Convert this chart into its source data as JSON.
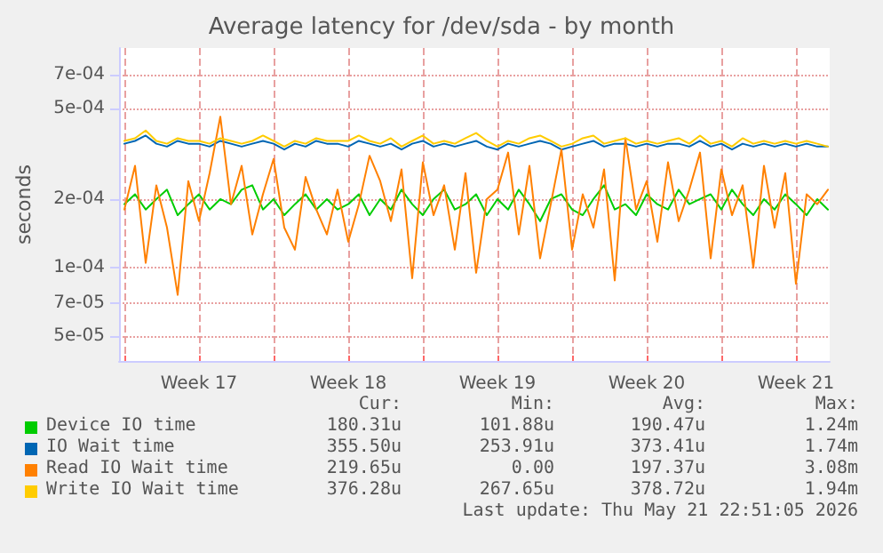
{
  "chart_data": {
    "type": "line",
    "title": "Average latency for /dev/sda - by month",
    "ylabel": "seconds",
    "log": "y",
    "grid": true,
    "legend": "bottom",
    "marker": "none",
    "line_style": "solid",
    "ylim": [
      3.9e-05,
      0.00092
    ],
    "yticks": [
      {
        "value": 5e-05,
        "label": "5e-05"
      },
      {
        "value": 7e-05,
        "label": "7e-05"
      },
      {
        "value": 0.0001,
        "label": "1e-04"
      },
      {
        "value": 0.0002,
        "label": "2e-04"
      },
      {
        "value": 0.0005,
        "label": "5e-04"
      },
      {
        "value": 0.0007,
        "label": "7e-04"
      }
    ],
    "xlim": [
      "2026-04-18T18:00",
      "2026-05-22T02:00"
    ],
    "xticks": [
      {
        "value": "2026-04-19",
        "label": null
      },
      {
        "value": "2026-04-22T12:00",
        "label": "Week 17"
      },
      {
        "value": "2026-04-26",
        "label": null
      },
      {
        "value": "2026-04-29T12:00",
        "label": "Week 18"
      },
      {
        "value": "2026-05-03",
        "label": null
      },
      {
        "value": "2026-05-06T12:00",
        "label": "Week 19"
      },
      {
        "value": "2026-05-10",
        "label": null
      },
      {
        "value": "2026-05-13T12:00",
        "label": "Week 20"
      },
      {
        "value": "2026-05-17",
        "label": null
      },
      {
        "value": "2026-05-20T12:00",
        "label": "Week 21"
      }
    ],
    "x": [
      "2026-04-19T00:00",
      "2026-04-19T12:00",
      "2026-04-20T00:00",
      "2026-04-20T12:00",
      "2026-04-21T00:00",
      "2026-04-21T12:00",
      "2026-04-22T00:00",
      "2026-04-22T12:00",
      "2026-04-23T00:00",
      "2026-04-23T12:00",
      "2026-04-24T00:00",
      "2026-04-24T12:00",
      "2026-04-25T00:00",
      "2026-04-25T12:00",
      "2026-04-26T00:00",
      "2026-04-26T12:00",
      "2026-04-27T00:00",
      "2026-04-27T12:00",
      "2026-04-28T00:00",
      "2026-04-28T12:00",
      "2026-04-29T00:00",
      "2026-04-29T12:00",
      "2026-04-30T00:00",
      "2026-04-30T12:00",
      "2026-05-01T00:00",
      "2026-05-01T12:00",
      "2026-05-02T00:00",
      "2026-05-02T12:00",
      "2026-05-03T00:00",
      "2026-05-03T12:00",
      "2026-05-04T00:00",
      "2026-05-04T12:00",
      "2026-05-05T00:00",
      "2026-05-05T12:00",
      "2026-05-06T00:00",
      "2026-05-06T12:00",
      "2026-05-07T00:00",
      "2026-05-07T12:00",
      "2026-05-08T00:00",
      "2026-05-08T12:00",
      "2026-05-09T00:00",
      "2026-05-09T12:00",
      "2026-05-10T00:00",
      "2026-05-10T12:00",
      "2026-05-11T00:00",
      "2026-05-11T12:00",
      "2026-05-12T00:00",
      "2026-05-12T12:00",
      "2026-05-13T00:00",
      "2026-05-13T12:00",
      "2026-05-14T00:00",
      "2026-05-14T12:00",
      "2026-05-15T00:00",
      "2026-05-15T12:00",
      "2026-05-16T00:00",
      "2026-05-16T12:00",
      "2026-05-17T00:00",
      "2026-05-17T12:00",
      "2026-05-18T00:00",
      "2026-05-18T12:00",
      "2026-05-19T00:00",
      "2026-05-19T12:00",
      "2026-05-20T00:00",
      "2026-05-20T12:00",
      "2026-05-21T00:00",
      "2026-05-21T12:00",
      "2026-05-22T00:00"
    ],
    "series": [
      {
        "name": "Device IO time",
        "color": "#00cc00",
        "values": [
          0.00019,
          0.00021,
          0.00018,
          0.0002,
          0.00022,
          0.00017,
          0.00019,
          0.00021,
          0.00018,
          0.0002,
          0.00019,
          0.00022,
          0.00023,
          0.00018,
          0.0002,
          0.00017,
          0.00019,
          0.00021,
          0.00018,
          0.0002,
          0.00018,
          0.00019,
          0.00021,
          0.00017,
          0.0002,
          0.00018,
          0.00022,
          0.00019,
          0.00017,
          0.0002,
          0.00022,
          0.00018,
          0.00019,
          0.00021,
          0.00017,
          0.0002,
          0.00018,
          0.00022,
          0.00019,
          0.00016,
          0.0002,
          0.00021,
          0.00018,
          0.00017,
          0.0002,
          0.00023,
          0.00018,
          0.00019,
          0.00017,
          0.00021,
          0.00019,
          0.00018,
          0.00022,
          0.00019,
          0.0002,
          0.00021,
          0.00018,
          0.00022,
          0.00019,
          0.00017,
          0.0002,
          0.00018,
          0.00021,
          0.00019,
          0.00017,
          0.0002,
          0.00018
        ]
      },
      {
        "name": "IO Wait time",
        "color": "#0066b3",
        "values": [
          0.00035,
          0.00036,
          0.00038,
          0.00035,
          0.00034,
          0.00036,
          0.00035,
          0.00035,
          0.00034,
          0.00036,
          0.00035,
          0.00034,
          0.00035,
          0.00036,
          0.00035,
          0.00033,
          0.00035,
          0.00034,
          0.00036,
          0.00035,
          0.00035,
          0.00034,
          0.00036,
          0.00035,
          0.00034,
          0.00035,
          0.00033,
          0.00035,
          0.00036,
          0.00034,
          0.00035,
          0.00034,
          0.00035,
          0.00036,
          0.00034,
          0.00033,
          0.00035,
          0.00034,
          0.00035,
          0.00036,
          0.00035,
          0.00033,
          0.00034,
          0.00035,
          0.00036,
          0.00034,
          0.00035,
          0.00035,
          0.00034,
          0.00035,
          0.00034,
          0.00035,
          0.00035,
          0.00034,
          0.00036,
          0.00034,
          0.00035,
          0.00033,
          0.00035,
          0.00034,
          0.00035,
          0.00034,
          0.00035,
          0.00034,
          0.00035,
          0.00034,
          0.00034
        ]
      },
      {
        "name": "Read IO Wait time",
        "color": "#ff8000",
        "values": [
          0.00018,
          0.00028,
          0.000105,
          0.00023,
          0.00015,
          7.6e-05,
          0.00024,
          0.00016,
          0.00026,
          0.00046,
          0.00019,
          0.00028,
          0.00014,
          0.00021,
          0.0003,
          0.00015,
          0.00012,
          0.00025,
          0.00018,
          0.00014,
          0.00022,
          0.00013,
          0.00019,
          0.00031,
          0.00024,
          0.00016,
          0.00027,
          9e-05,
          0.00029,
          0.00017,
          0.00023,
          0.00012,
          0.00026,
          9.5e-05,
          0.0002,
          0.00022,
          0.00032,
          0.00014,
          0.00028,
          0.00011,
          0.00019,
          0.00033,
          0.00012,
          0.00021,
          0.00015,
          0.00027,
          8.8e-05,
          0.00037,
          0.00018,
          0.00024,
          0.00013,
          0.00029,
          0.00016,
          0.00022,
          0.00032,
          0.00011,
          0.00027,
          0.00017,
          0.00023,
          0.0001,
          0.00028,
          0.00015,
          0.00026,
          8.5e-05,
          0.00021,
          0.00019,
          0.00022
        ]
      },
      {
        "name": "Write IO Wait time",
        "color": "#ffcc00",
        "values": [
          0.00036,
          0.00037,
          0.0004,
          0.00036,
          0.00035,
          0.00037,
          0.00036,
          0.00036,
          0.00035,
          0.00037,
          0.00036,
          0.00035,
          0.00036,
          0.00038,
          0.00036,
          0.00034,
          0.00036,
          0.00035,
          0.00037,
          0.00036,
          0.00036,
          0.00036,
          0.00038,
          0.00036,
          0.00035,
          0.00037,
          0.00034,
          0.00036,
          0.00038,
          0.00035,
          0.00036,
          0.00035,
          0.00037,
          0.00039,
          0.00036,
          0.00034,
          0.00036,
          0.00035,
          0.00037,
          0.00038,
          0.00036,
          0.00034,
          0.00035,
          0.00037,
          0.00038,
          0.00035,
          0.00036,
          0.00037,
          0.00035,
          0.00036,
          0.00035,
          0.00036,
          0.00037,
          0.00035,
          0.00038,
          0.00035,
          0.00036,
          0.00034,
          0.00037,
          0.00035,
          0.00036,
          0.00035,
          0.00036,
          0.00035,
          0.00036,
          0.00035,
          0.00034
        ]
      }
    ],
    "annotations": [
      "Cur:",
      "Min:",
      "Avg:",
      "Max:",
      "180.31u",
      "101.88u",
      "190.47u",
      "1.24m",
      "355.50u",
      "253.91u",
      "373.41u",
      "1.74m",
      "219.65u",
      "0.00",
      "197.37u",
      "3.08m",
      "376.28u",
      "267.65u",
      "378.72u",
      "1.94m",
      "Last update: Thu May 21 22:51:05 2026"
    ]
  }
}
